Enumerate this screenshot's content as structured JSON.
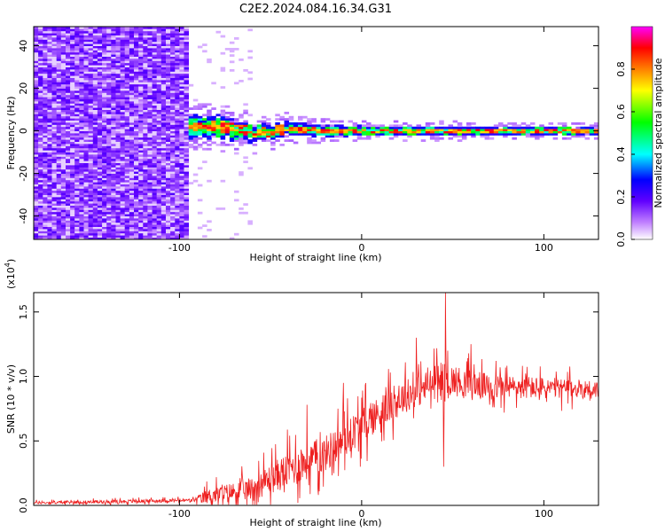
{
  "title": "C2E2.2024.084.16.34.G31",
  "chart_data": [
    {
      "type": "heatmap",
      "xlabel": "Height of straight line (km)",
      "ylabel": "Frequency (Hz)",
      "xlim": [
        -180,
        130
      ],
      "ylim": [
        -51,
        49
      ],
      "xticks": [
        -100,
        0,
        100
      ],
      "yticks": [
        -40,
        -20,
        0,
        20,
        40
      ],
      "colorbar": {
        "label": "Normalized spectral amplitude",
        "range": [
          0,
          1
        ],
        "ticks": [
          "0.0",
          "0.2",
          "0.4",
          "0.6",
          "0.8"
        ],
        "colors": [
          "#ffffff",
          "#8000ff",
          "#0000ff",
          "#00ffff",
          "#00ff00",
          "#ffff00",
          "#ff8000",
          "#ff0000",
          "#ff00ff"
        ]
      },
      "signal_onset_x": -95,
      "noise_region_x": [
        -180,
        -95
      ],
      "band": [
        {
          "x": -95,
          "center": 2,
          "halfwidth": 5
        },
        {
          "x": -80,
          "center": 2,
          "halfwidth": 5
        },
        {
          "x": -60,
          "center": -1,
          "halfwidth": 4
        },
        {
          "x": -40,
          "center": 1,
          "halfwidth": 3
        },
        {
          "x": -20,
          "center": 0,
          "halfwidth": 2.5
        },
        {
          "x": 0,
          "center": 0,
          "halfwidth": 2
        },
        {
          "x": 40,
          "center": 0,
          "halfwidth": 2
        },
        {
          "x": 80,
          "center": 0,
          "halfwidth": 1.8
        },
        {
          "x": 130,
          "center": 0,
          "halfwidth": 1.8
        }
      ]
    },
    {
      "type": "line",
      "xlabel": "Height of straight line (km)",
      "ylabel": "SNR (10 * v/v)",
      "scale_label": "(x10",
      "scale_exp": "4",
      "scale_close": ")",
      "xlim": [
        -180,
        130
      ],
      "ylim": [
        0,
        1.65
      ],
      "xticks": [
        -100,
        0,
        100
      ],
      "yticks": [
        "0.0",
        "0.5",
        "1.0",
        "1.5"
      ],
      "color": "#ee2020",
      "trend": [
        {
          "x": -180,
          "y": 0.02,
          "noise": 0.015
        },
        {
          "x": -92,
          "y": 0.04,
          "noise": 0.02
        },
        {
          "x": -85,
          "y": 0.07,
          "noise": 0.08
        },
        {
          "x": -60,
          "y": 0.13,
          "noise": 0.13
        },
        {
          "x": -40,
          "y": 0.28,
          "noise": 0.2
        },
        {
          "x": -20,
          "y": 0.4,
          "noise": 0.2
        },
        {
          "x": 0,
          "y": 0.62,
          "noise": 0.2
        },
        {
          "x": 20,
          "y": 0.82,
          "noise": 0.18
        },
        {
          "x": 45,
          "y": 0.98,
          "noise": 0.18
        },
        {
          "x": 70,
          "y": 0.92,
          "noise": 0.14
        },
        {
          "x": 130,
          "y": 0.9,
          "noise": 0.1
        }
      ],
      "spikes": [
        {
          "x": 46,
          "y": 1.65
        },
        {
          "x": 45,
          "y": 0.3
        },
        {
          "x": 30,
          "y": 1.3
        },
        {
          "x": 60,
          "y": 1.25
        },
        {
          "x": -10,
          "y": 0.95
        },
        {
          "x": -30,
          "y": 0.78
        }
      ]
    }
  ]
}
